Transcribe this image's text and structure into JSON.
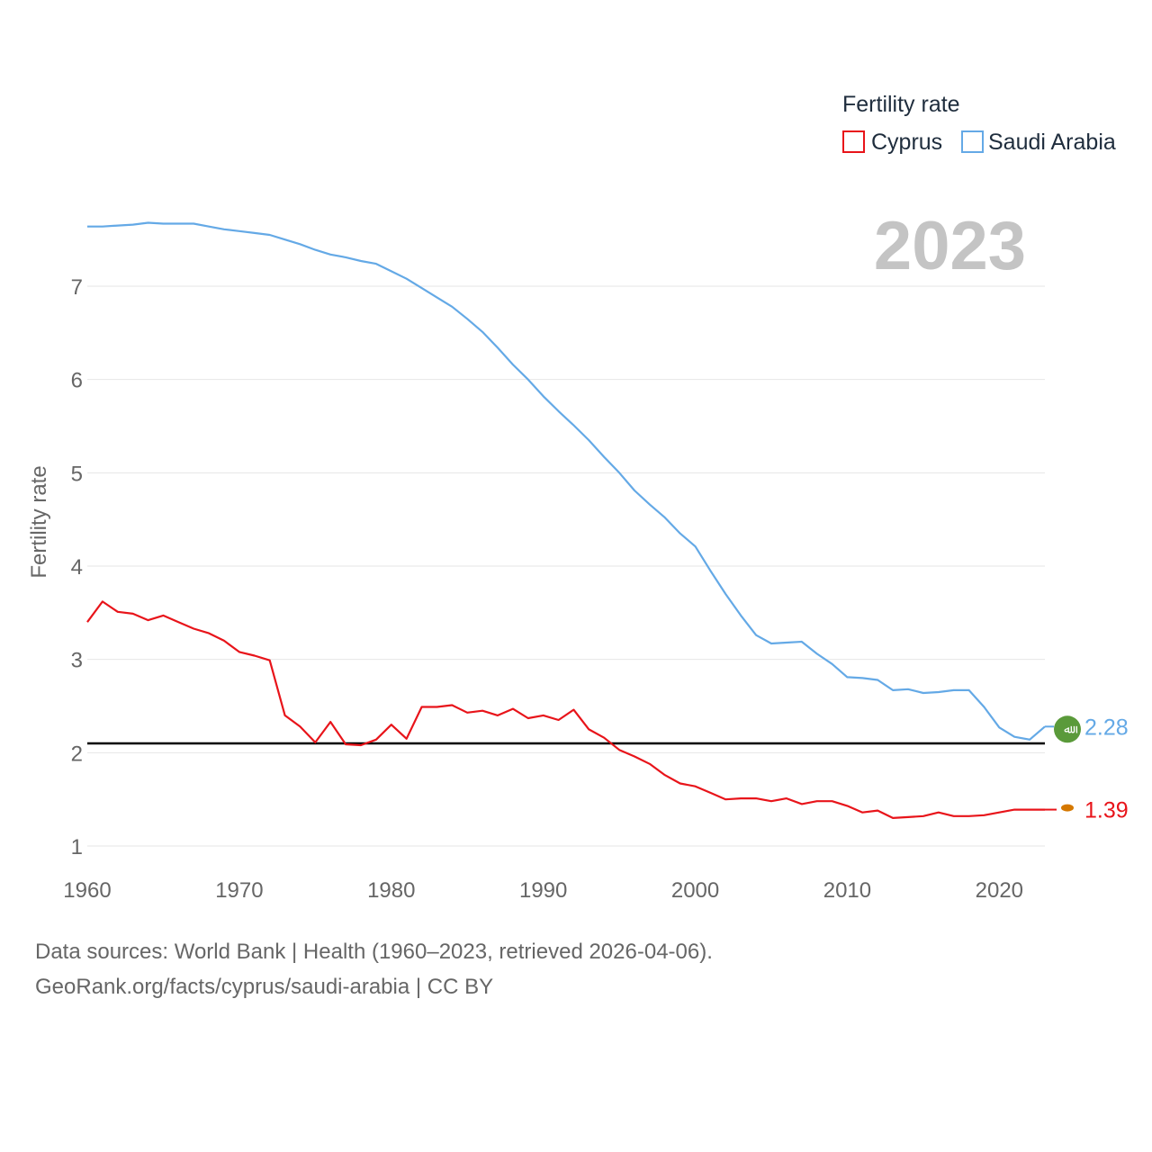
{
  "legend": {
    "title": "Fertility rate",
    "items": [
      {
        "label": "Cyprus",
        "color": "#e8141a"
      },
      {
        "label": "Saudi Arabia",
        "color": "#64a9e6"
      }
    ]
  },
  "year_label": "2023",
  "footer": {
    "line1": "Data sources: World Bank | Health (1960–2023, retrieved 2026-04-06).",
    "line2": "GeoRank.org/facts/cyprus/saudi-arabia | CC BY"
  },
  "chart_data": {
    "type": "line",
    "title": "Fertility rate",
    "xlabel": "",
    "ylabel": "Fertility rate",
    "xlim": [
      1960,
      2023
    ],
    "ylim": [
      0.8,
      7.7
    ],
    "x_ticks": [
      1960,
      1970,
      1980,
      1990,
      2000,
      2010,
      2020
    ],
    "y_ticks": [
      1,
      2,
      3,
      4,
      5,
      6,
      7
    ],
    "grid": true,
    "reference_line": {
      "y": 2.1,
      "color": "#000000"
    },
    "series": [
      {
        "name": "Cyprus",
        "color": "#e8141a",
        "end_label": "1.39",
        "x": [
          1960,
          1961,
          1962,
          1963,
          1964,
          1965,
          1966,
          1967,
          1968,
          1969,
          1970,
          1971,
          1972,
          1973,
          1974,
          1975,
          1976,
          1977,
          1978,
          1979,
          1980,
          1981,
          1982,
          1983,
          1984,
          1985,
          1986,
          1987,
          1988,
          1989,
          1990,
          1991,
          1992,
          1993,
          1994,
          1995,
          1996,
          1997,
          1998,
          1999,
          2000,
          2001,
          2002,
          2003,
          2004,
          2005,
          2006,
          2007,
          2008,
          2009,
          2010,
          2011,
          2012,
          2013,
          2014,
          2015,
          2016,
          2017,
          2018,
          2019,
          2020,
          2021,
          2022,
          2023
        ],
        "values": [
          3.4,
          3.62,
          3.51,
          3.49,
          3.42,
          3.47,
          3.4,
          3.33,
          3.28,
          3.2,
          3.08,
          3.04,
          2.99,
          2.4,
          2.28,
          2.11,
          2.33,
          2.09,
          2.08,
          2.14,
          2.3,
          2.15,
          2.49,
          2.49,
          2.51,
          2.43,
          2.45,
          2.4,
          2.47,
          2.37,
          2.4,
          2.35,
          2.46,
          2.25,
          2.16,
          2.03,
          1.96,
          1.88,
          1.76,
          1.67,
          1.64,
          1.57,
          1.5,
          1.51,
          1.51,
          1.48,
          1.51,
          1.45,
          1.48,
          1.48,
          1.43,
          1.36,
          1.38,
          1.3,
          1.31,
          1.32,
          1.36,
          1.32,
          1.32,
          1.33,
          1.36,
          1.39,
          1.39,
          1.39
        ]
      },
      {
        "name": "Saudi Arabia",
        "color": "#64a9e6",
        "end_label": "2.28",
        "x": [
          1960,
          1961,
          1962,
          1963,
          1964,
          1965,
          1966,
          1967,
          1968,
          1969,
          1970,
          1971,
          1972,
          1973,
          1974,
          1975,
          1976,
          1977,
          1978,
          1979,
          1980,
          1981,
          1982,
          1983,
          1984,
          1985,
          1986,
          1987,
          1988,
          1989,
          1990,
          1991,
          1992,
          1993,
          1994,
          1995,
          1996,
          1997,
          1998,
          1999,
          2000,
          2001,
          2002,
          2003,
          2004,
          2005,
          2006,
          2007,
          2008,
          2009,
          2010,
          2011,
          2012,
          2013,
          2014,
          2015,
          2016,
          2017,
          2018,
          2019,
          2020,
          2021,
          2022,
          2023
        ],
        "values": [
          7.64,
          7.64,
          7.65,
          7.66,
          7.68,
          7.67,
          7.67,
          7.67,
          7.64,
          7.61,
          7.59,
          7.57,
          7.55,
          7.5,
          7.45,
          7.39,
          7.34,
          7.31,
          7.27,
          7.24,
          7.16,
          7.08,
          6.98,
          6.88,
          6.78,
          6.65,
          6.51,
          6.34,
          6.16,
          6.0,
          5.82,
          5.66,
          5.51,
          5.35,
          5.17,
          5.0,
          4.81,
          4.66,
          4.52,
          4.35,
          4.21,
          3.95,
          3.7,
          3.47,
          3.26,
          3.17,
          3.18,
          3.19,
          3.06,
          2.95,
          2.81,
          2.8,
          2.78,
          2.67,
          2.68,
          2.64,
          2.65,
          2.67,
          2.67,
          2.49,
          2.27,
          2.17,
          2.14,
          2.28
        ]
      }
    ]
  }
}
